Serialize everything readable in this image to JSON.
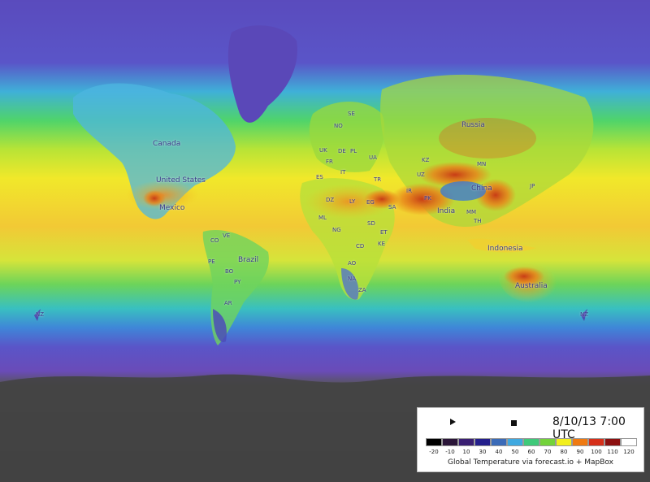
{
  "map": {
    "countries": {
      "canada": "Canada",
      "us": "United States",
      "mexico": "Mexico",
      "brazil": "Brazil",
      "russia": "Russia",
      "china": "China",
      "india": "India",
      "indonesia": "Indonesia",
      "australia": "Australia"
    },
    "codes": {
      "ve": "VE",
      "co": "CO",
      "pe": "PE",
      "bo": "BO",
      "py": "PY",
      "ar": "AR",
      "nz_left": "NZ",
      "nz_right": "NZ",
      "se": "SE",
      "no": "NO",
      "uk": "UK",
      "de": "DE",
      "pl": "PL",
      "fr": "FR",
      "ua": "UA",
      "es": "ES",
      "it": "IT",
      "tr": "TR",
      "kz": "KZ",
      "uz": "UZ",
      "ir": "IR",
      "mn": "MN",
      "jp": "JP",
      "pk": "PK",
      "sa": "SA",
      "eg": "EG",
      "dz": "DZ",
      "ly": "LY",
      "ml": "ML",
      "ng": "NG",
      "sd": "SD",
      "et": "ET",
      "ke": "KE",
      "cd": "CD",
      "ao": "AO",
      "na": "NA",
      "za": "ZA",
      "mm": "MM",
      "th": "TH"
    }
  },
  "controls": {
    "play_icon": "play-icon",
    "stop_icon": "stop-icon",
    "datetime": "8/10/13 7:00 UTC"
  },
  "legend": {
    "ticks": [
      "-20",
      "-10",
      "10",
      "30",
      "40",
      "50",
      "60",
      "70",
      "80",
      "90",
      "100",
      "110",
      "120"
    ],
    "colors": [
      "#000000",
      "#2a1538",
      "#3a1f72",
      "#241f8c",
      "#3b6bb8",
      "#3fa9e0",
      "#3fc97a",
      "#73d23a",
      "#f2ef1c",
      "#ef7a12",
      "#d6301a",
      "#8c1010",
      "#ffffff"
    ],
    "credit": "Global Temperature via forecast.io + MapBox"
  }
}
